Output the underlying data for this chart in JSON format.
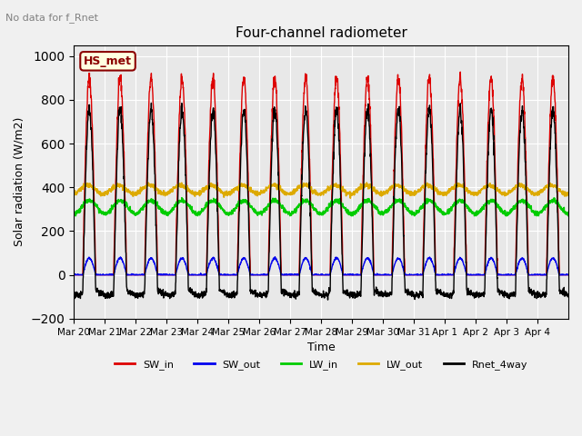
{
  "title": "Four-channel radiometer",
  "subtitle": "No data for f_Rnet",
  "ylabel": "Solar radiation (W/m2)",
  "xlabel": "Time",
  "station_label": "HS_met",
  "ylim": [
    -200,
    1050
  ],
  "yticks": [
    -200,
    0,
    200,
    400,
    600,
    800,
    1000
  ],
  "n_days": 16,
  "SW_in_peak": 900,
  "LW_in_base": 310,
  "LW_out_base": 390,
  "colors": {
    "SW_in": "#dd0000",
    "SW_out": "#0000ee",
    "LW_in": "#00cc00",
    "LW_out": "#ddaa00",
    "Rnet_4way": "#000000"
  },
  "x_tick_labels": [
    "Mar 20",
    "Mar 21",
    "Mar 22",
    "Mar 23",
    "Mar 24",
    "Mar 25",
    "Mar 26",
    "Mar 27",
    "Mar 28",
    "Mar 29",
    "Mar 30",
    "Mar 31",
    "Apr 1",
    "Apr 2",
    "Apr 3",
    "Apr 4"
  ],
  "background_color": "#f0f0f0",
  "plot_bg_color": "#e8e8e8"
}
